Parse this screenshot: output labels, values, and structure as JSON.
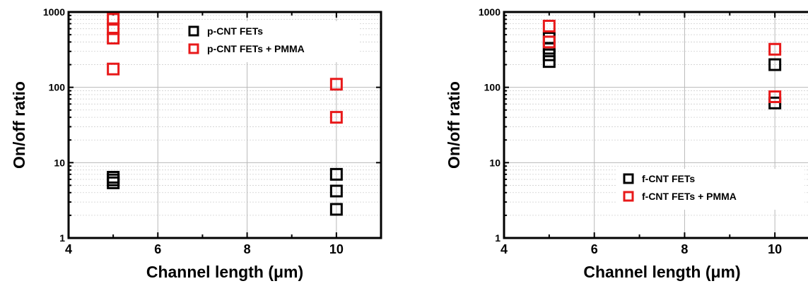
{
  "chart_data": [
    {
      "type": "scatter",
      "title": "",
      "xlabel": "Channel length (μm)",
      "ylabel": "On/off ratio",
      "xlim": [
        4,
        11
      ],
      "ylim": [
        1,
        1000
      ],
      "yscale": "log",
      "xticks": [
        "4",
        "6",
        "8",
        "10"
      ],
      "yticks": [
        "1",
        "10",
        "100",
        "1000"
      ],
      "grid": true,
      "legend_position": "top-right",
      "series": [
        {
          "name": "p-CNT FETs",
          "color": "#000000",
          "marker": "open-square",
          "points": [
            {
              "x": 5,
              "y": 5.4
            },
            {
              "x": 5,
              "y": 5.9
            },
            {
              "x": 5,
              "y": 6.4
            },
            {
              "x": 10,
              "y": 2.4
            },
            {
              "x": 10,
              "y": 4.2
            },
            {
              "x": 10,
              "y": 7
            }
          ]
        },
        {
          "name": "p-CNT FETs + PMMA",
          "color": "#e8191a",
          "marker": "open-square",
          "points": [
            {
              "x": 5,
              "y": 175
            },
            {
              "x": 5,
              "y": 450
            },
            {
              "x": 5,
              "y": 600
            },
            {
              "x": 5,
              "y": 800
            },
            {
              "x": 10,
              "y": 40
            },
            {
              "x": 10,
              "y": 110
            }
          ]
        }
      ]
    },
    {
      "type": "scatter",
      "title": "",
      "xlabel": "Channel length (μm)",
      "ylabel": "On/off ratio",
      "xlim": [
        4,
        11
      ],
      "ylim": [
        1,
        1000
      ],
      "yscale": "log",
      "xticks": [
        "4",
        "6",
        "8",
        "10"
      ],
      "yticks": [
        "1",
        "10",
        "100",
        "1000"
      ],
      "grid": true,
      "legend_position": "bottom-right",
      "series": [
        {
          "name": "f-CNT FETs",
          "color": "#000000",
          "marker": "open-square",
          "points": [
            {
              "x": 5,
              "y": 220
            },
            {
              "x": 5,
              "y": 270
            },
            {
              "x": 5,
              "y": 330
            },
            {
              "x": 5,
              "y": 450
            },
            {
              "x": 10,
              "y": 62
            },
            {
              "x": 10,
              "y": 200
            }
          ]
        },
        {
          "name": "f-CNT FETs + PMMA",
          "color": "#e8191a",
          "marker": "open-square",
          "points": [
            {
              "x": 5,
              "y": 400
            },
            {
              "x": 5,
              "y": 650
            },
            {
              "x": 10,
              "y": 75
            },
            {
              "x": 10,
              "y": 320
            }
          ]
        }
      ]
    }
  ]
}
